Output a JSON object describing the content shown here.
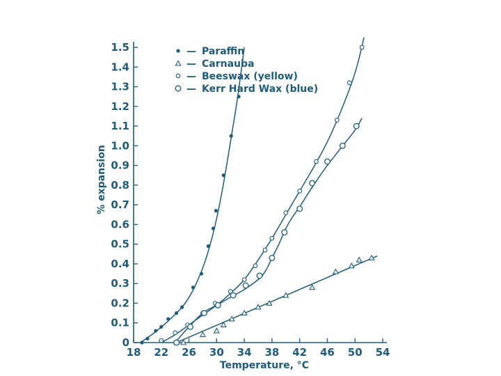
{
  "chart_data": {
    "type": "scatter",
    "xlabel": "Temperature, °C",
    "ylabel": "% expansion",
    "xlim": [
      18,
      54
    ],
    "ylim": [
      0,
      1.5
    ],
    "x_ticks": [
      "18",
      "22",
      "26",
      "30",
      "34",
      "38",
      "42",
      "46",
      "50",
      "54"
    ],
    "y_ticks": [
      "0",
      "0.1",
      "0.2",
      "0.3",
      "0.4",
      "0.5",
      "0.6",
      "0.7",
      "0.8",
      "0.9",
      "1.0",
      "1.1",
      "1.2",
      "1.3",
      "1.4",
      "1.5"
    ],
    "grid": false,
    "legend_position": "top-left",
    "legend_dash": "—",
    "color": "#1f5b78",
    "series": [
      {
        "name": "Paraffin",
        "marker": "dot",
        "points": [
          [
            19.2,
            0.0
          ],
          [
            20.0,
            0.02
          ],
          [
            21.2,
            0.06
          ],
          [
            22.0,
            0.08
          ],
          [
            23.0,
            0.12
          ],
          [
            24.2,
            0.15
          ],
          [
            25.0,
            0.18
          ],
          [
            26.6,
            0.28
          ],
          [
            27.8,
            0.35
          ],
          [
            28.8,
            0.49
          ],
          [
            29.5,
            0.58
          ],
          [
            29.9,
            0.67
          ],
          [
            31.0,
            0.85
          ],
          [
            32.1,
            1.05
          ],
          [
            33.2,
            1.25
          ]
        ],
        "curve": [
          [
            19.0,
            0.0
          ],
          [
            21.0,
            0.05
          ],
          [
            23.0,
            0.11
          ],
          [
            25.0,
            0.18
          ],
          [
            26.5,
            0.26
          ],
          [
            28.0,
            0.38
          ],
          [
            29.0,
            0.49
          ],
          [
            30.0,
            0.63
          ],
          [
            31.0,
            0.81
          ],
          [
            32.0,
            1.02
          ],
          [
            33.0,
            1.24
          ],
          [
            34.0,
            1.5
          ]
        ]
      },
      {
        "name": "Carnauba",
        "marker": "triangle",
        "points": [
          [
            24.2,
            0.0
          ],
          [
            25.2,
            0.0
          ],
          [
            28.0,
            0.04
          ],
          [
            30.0,
            0.06
          ],
          [
            31.0,
            0.09
          ],
          [
            32.2,
            0.12
          ],
          [
            34.0,
            0.15
          ],
          [
            36.0,
            0.18
          ],
          [
            37.6,
            0.2
          ],
          [
            40.0,
            0.24
          ],
          [
            43.8,
            0.28
          ],
          [
            47.2,
            0.36
          ],
          [
            49.5,
            0.39
          ],
          [
            50.6,
            0.42
          ],
          [
            52.4,
            0.43
          ]
        ],
        "curve": [
          [
            24.2,
            0.0
          ],
          [
            53.2,
            0.44
          ]
        ]
      },
      {
        "name": "Beeswax (yellow)",
        "marker": "small-circle",
        "points": [
          [
            22.0,
            0.01
          ],
          [
            24.0,
            0.05
          ],
          [
            25.8,
            0.09
          ],
          [
            28.0,
            0.15
          ],
          [
            29.8,
            0.2
          ],
          [
            32.0,
            0.26
          ],
          [
            34.0,
            0.32
          ],
          [
            35.6,
            0.39
          ],
          [
            37.0,
            0.47
          ],
          [
            38.0,
            0.53
          ],
          [
            40.0,
            0.66
          ],
          [
            42.0,
            0.77
          ],
          [
            44.4,
            0.92
          ],
          [
            47.4,
            1.13
          ],
          [
            49.2,
            1.32
          ],
          [
            51.0,
            1.5
          ]
        ],
        "curve": [
          [
            22.0,
            0.0
          ],
          [
            24.0,
            0.04
          ],
          [
            26.0,
            0.09
          ],
          [
            28.0,
            0.14
          ],
          [
            30.0,
            0.19
          ],
          [
            32.0,
            0.25
          ],
          [
            34.0,
            0.32
          ],
          [
            36.0,
            0.42
          ],
          [
            38.0,
            0.53
          ],
          [
            40.0,
            0.65
          ],
          [
            42.0,
            0.77
          ],
          [
            44.0,
            0.89
          ],
          [
            46.0,
            1.02
          ],
          [
            48.0,
            1.18
          ],
          [
            50.0,
            1.37
          ],
          [
            51.3,
            1.55
          ]
        ]
      },
      {
        "name": "Kerr Hard Wax (blue)",
        "marker": "large-circle",
        "points": [
          [
            24.2,
            0.0
          ],
          [
            26.2,
            0.08
          ],
          [
            28.2,
            0.15
          ],
          [
            30.2,
            0.19
          ],
          [
            32.4,
            0.24
          ],
          [
            34.2,
            0.29
          ],
          [
            36.2,
            0.34
          ],
          [
            38.0,
            0.43
          ],
          [
            39.8,
            0.56
          ],
          [
            42.0,
            0.68
          ],
          [
            43.8,
            0.81
          ],
          [
            46.0,
            0.92
          ],
          [
            48.2,
            1.0
          ],
          [
            50.2,
            1.1
          ]
        ],
        "curve": [
          [
            24.0,
            0.0
          ],
          [
            26.0,
            0.08
          ],
          [
            28.0,
            0.15
          ],
          [
            30.0,
            0.19
          ],
          [
            32.0,
            0.23
          ],
          [
            34.0,
            0.27
          ],
          [
            36.0,
            0.32
          ],
          [
            37.0,
            0.36
          ],
          [
            38.0,
            0.43
          ],
          [
            39.0,
            0.5
          ],
          [
            40.0,
            0.58
          ],
          [
            41.0,
            0.64
          ],
          [
            42.0,
            0.69
          ],
          [
            44.0,
            0.8
          ],
          [
            46.0,
            0.9
          ],
          [
            48.0,
            0.99
          ],
          [
            50.0,
            1.08
          ],
          [
            51.0,
            1.14
          ]
        ]
      }
    ]
  }
}
